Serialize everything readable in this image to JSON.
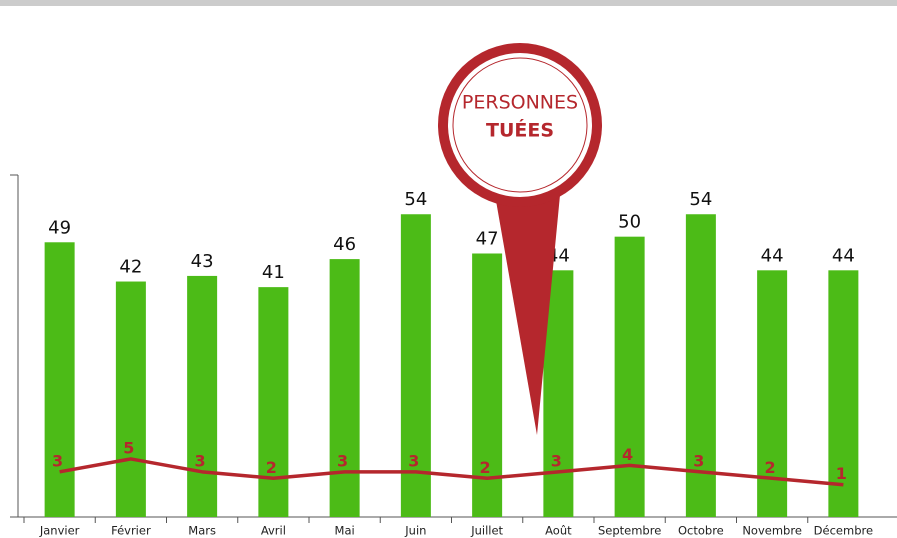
{
  "chart_data": {
    "type": "bar",
    "title": "PERSONNES",
    "title_emphasis": "TUÉES",
    "categories": [
      "Janvier",
      "Février",
      "Mars",
      "Avril",
      "Mai",
      "Juin",
      "Juillet",
      "Août",
      "Septembre",
      "Octobre",
      "Novembre",
      "Décembre"
    ],
    "series": [
      {
        "type": "bar",
        "color": "#4cbb17",
        "values": [
          49,
          42,
          43,
          41,
          46,
          54,
          47,
          44,
          50,
          54,
          44,
          44
        ]
      },
      {
        "type": "line",
        "color": "#b5272d",
        "axis": "y2",
        "values": [
          3,
          5,
          3,
          2,
          3,
          3,
          2,
          3,
          4,
          3,
          2,
          1
        ]
      }
    ],
    "ylim": [
      0,
      61
    ],
    "y2lim": [
      -4,
      49
    ]
  }
}
